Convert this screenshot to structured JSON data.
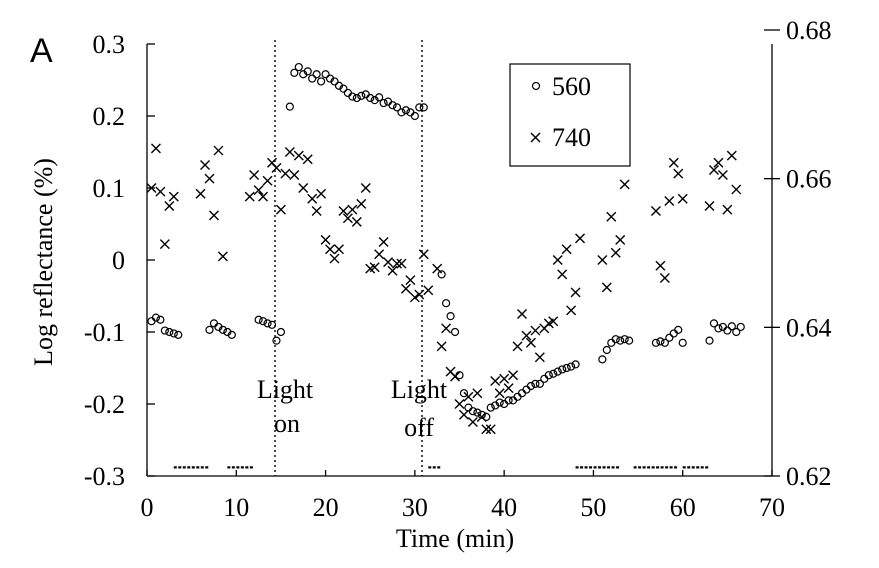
{
  "chart_data": {
    "type": "scatter",
    "panel_label": "A",
    "xlabel": "Time (min)",
    "ylabel": "Log reflectance (%)",
    "xlim": [
      0,
      70
    ],
    "ylim": [
      -0.3,
      0.3
    ],
    "x_ticks": [
      "0",
      "10",
      "20",
      "30",
      "40",
      "50",
      "60",
      "70"
    ],
    "y_ticks": [
      "-0.3",
      "-0.2",
      "-0.1",
      "0",
      "0.1",
      "0.2",
      "0.3"
    ],
    "y2lim": [
      0.62,
      0.68
    ],
    "y2_ticks": [
      "0.62",
      "0.64",
      "0.66",
      "0.68"
    ],
    "series": [
      {
        "name": "560",
        "marker": "circle",
        "points": [
          [
            0.5,
            -0.085
          ],
          [
            1,
            -0.08
          ],
          [
            1.5,
            -0.083
          ],
          [
            2,
            -0.098
          ],
          [
            2.5,
            -0.1
          ],
          [
            3,
            -0.102
          ],
          [
            3.5,
            -0.104
          ],
          [
            7,
            -0.097
          ],
          [
            7.5,
            -0.088
          ],
          [
            8,
            -0.093
          ],
          [
            8.5,
            -0.097
          ],
          [
            9,
            -0.1
          ],
          [
            9.5,
            -0.104
          ],
          [
            12.5,
            -0.083
          ],
          [
            13,
            -0.085
          ],
          [
            13.5,
            -0.088
          ],
          [
            14,
            -0.09
          ],
          [
            14.5,
            -0.112
          ],
          [
            15,
            -0.1
          ],
          [
            16,
            0.213
          ],
          [
            16.5,
            0.26
          ],
          [
            17,
            0.268
          ],
          [
            17.5,
            0.258
          ],
          [
            18,
            0.262
          ],
          [
            18.5,
            0.252
          ],
          [
            19,
            0.258
          ],
          [
            19.5,
            0.248
          ],
          [
            20,
            0.258
          ],
          [
            20.5,
            0.252
          ],
          [
            21,
            0.248
          ],
          [
            21.5,
            0.242
          ],
          [
            22,
            0.238
          ],
          [
            22.5,
            0.232
          ],
          [
            23,
            0.227
          ],
          [
            23.5,
            0.225
          ],
          [
            24,
            0.228
          ],
          [
            24.5,
            0.23
          ],
          [
            25,
            0.225
          ],
          [
            25.5,
            0.222
          ],
          [
            26,
            0.226
          ],
          [
            26.5,
            0.218
          ],
          [
            27,
            0.22
          ],
          [
            27.5,
            0.215
          ],
          [
            28,
            0.212
          ],
          [
            28.5,
            0.205
          ],
          [
            29,
            0.208
          ],
          [
            29.5,
            0.205
          ],
          [
            30,
            0.2
          ],
          [
            30.5,
            0.212
          ],
          [
            31,
            0.212
          ],
          [
            33,
            -0.02
          ],
          [
            33.5,
            -0.06
          ],
          [
            34,
            -0.078
          ],
          [
            34.5,
            -0.1
          ],
          [
            35,
            -0.16
          ],
          [
            35.5,
            -0.185
          ],
          [
            36,
            -0.205
          ],
          [
            36.5,
            -0.21
          ],
          [
            37,
            -0.212
          ],
          [
            37.5,
            -0.215
          ],
          [
            38,
            -0.218
          ],
          [
            38.5,
            -0.205
          ],
          [
            39,
            -0.202
          ],
          [
            39.5,
            -0.198
          ],
          [
            40,
            -0.2
          ],
          [
            40.5,
            -0.195
          ],
          [
            41,
            -0.195
          ],
          [
            41.5,
            -0.19
          ],
          [
            42,
            -0.185
          ],
          [
            42.5,
            -0.18
          ],
          [
            43,
            -0.175
          ],
          [
            43.5,
            -0.172
          ],
          [
            44,
            -0.172
          ],
          [
            44.5,
            -0.165
          ],
          [
            45,
            -0.16
          ],
          [
            45.5,
            -0.158
          ],
          [
            46,
            -0.155
          ],
          [
            46.5,
            -0.152
          ],
          [
            47,
            -0.15
          ],
          [
            47.5,
            -0.148
          ],
          [
            48,
            -0.145
          ],
          [
            51,
            -0.138
          ],
          [
            51.5,
            -0.125
          ],
          [
            52,
            -0.115
          ],
          [
            52.5,
            -0.11
          ],
          [
            53,
            -0.112
          ],
          [
            53.5,
            -0.11
          ],
          [
            54,
            -0.112
          ],
          [
            57,
            -0.115
          ],
          [
            57.5,
            -0.113
          ],
          [
            58,
            -0.115
          ],
          [
            58.5,
            -0.108
          ],
          [
            59,
            -0.102
          ],
          [
            59.5,
            -0.097
          ],
          [
            60,
            -0.115
          ],
          [
            63,
            -0.112
          ],
          [
            63.5,
            -0.088
          ],
          [
            64,
            -0.095
          ],
          [
            64.5,
            -0.093
          ],
          [
            65,
            -0.098
          ],
          [
            65.5,
            -0.092
          ],
          [
            66,
            -0.1
          ],
          [
            66.5,
            -0.093
          ]
        ]
      },
      {
        "name": "740",
        "marker": "x",
        "points": [
          [
            0.5,
            0.1
          ],
          [
            1,
            0.155
          ],
          [
            1.5,
            0.095
          ],
          [
            2,
            0.022
          ],
          [
            2.5,
            0.075
          ],
          [
            3,
            0.088
          ],
          [
            6,
            0.092
          ],
          [
            6.5,
            0.132
          ],
          [
            7,
            0.113
          ],
          [
            7.5,
            0.062
          ],
          [
            8,
            0.152
          ],
          [
            8.5,
            0.005
          ],
          [
            11.5,
            0.088
          ],
          [
            12,
            0.118
          ],
          [
            12.5,
            0.097
          ],
          [
            13,
            0.088
          ],
          [
            13.5,
            0.11
          ],
          [
            14,
            0.135
          ],
          [
            14.5,
            0.128
          ],
          [
            15,
            0.07
          ],
          [
            15.5,
            0.12
          ],
          [
            16,
            0.15
          ],
          [
            16.5,
            0.118
          ],
          [
            17,
            0.145
          ],
          [
            17.5,
            0.1
          ],
          [
            18,
            0.14
          ],
          [
            18.5,
            0.085
          ],
          [
            19,
            0.068
          ],
          [
            19.5,
            0.092
          ],
          [
            20,
            0.028
          ],
          [
            20.5,
            0.015
          ],
          [
            21,
            0.002
          ],
          [
            21.5,
            0.015
          ],
          [
            22,
            0.068
          ],
          [
            22.5,
            0.058
          ],
          [
            23,
            0.07
          ],
          [
            23.5,
            0.053
          ],
          [
            24,
            0.078
          ],
          [
            24.5,
            0.1
          ],
          [
            25,
            -0.012
          ],
          [
            25.5,
            -0.01
          ],
          [
            26,
            0.008
          ],
          [
            26.5,
            0.025
          ],
          [
            27,
            -0.003
          ],
          [
            27.5,
            -0.015
          ],
          [
            28,
            -0.005
          ],
          [
            28.5,
            -0.005
          ],
          [
            29,
            -0.04
          ],
          [
            29.5,
            -0.028
          ],
          [
            30,
            -0.052
          ],
          [
            30.5,
            -0.048
          ],
          [
            31,
            0.008
          ],
          [
            31.5,
            -0.042
          ],
          [
            32.5,
            -0.012
          ],
          [
            33,
            -0.12
          ],
          [
            33.5,
            -0.095
          ],
          [
            34,
            -0.155
          ],
          [
            34.5,
            -0.162
          ],
          [
            35,
            -0.2
          ],
          [
            35.5,
            -0.215
          ],
          [
            36,
            -0.19
          ],
          [
            36.5,
            -0.225
          ],
          [
            37,
            -0.185
          ],
          [
            37.5,
            -0.218
          ],
          [
            38,
            -0.235
          ],
          [
            38.5,
            -0.235
          ],
          [
            39,
            -0.168
          ],
          [
            39.5,
            -0.185
          ],
          [
            40,
            -0.165
          ],
          [
            40.5,
            -0.178
          ],
          [
            41,
            -0.16
          ],
          [
            41.5,
            -0.12
          ],
          [
            42,
            -0.075
          ],
          [
            42.5,
            -0.105
          ],
          [
            43,
            -0.115
          ],
          [
            43.5,
            -0.098
          ],
          [
            44,
            -0.135
          ],
          [
            44.5,
            -0.095
          ],
          [
            45,
            -0.088
          ],
          [
            45.5,
            -0.085
          ],
          [
            46,
            0.0
          ],
          [
            46.5,
            -0.02
          ],
          [
            47,
            0.015
          ],
          [
            47.5,
            -0.07
          ],
          [
            48,
            -0.045
          ],
          [
            48.5,
            0.03
          ],
          [
            51,
            0.0
          ],
          [
            51.5,
            -0.038
          ],
          [
            52,
            0.06
          ],
          [
            52.5,
            0.01
          ],
          [
            53,
            0.028
          ],
          [
            53.5,
            0.105
          ],
          [
            57,
            0.068
          ],
          [
            57.5,
            -0.008
          ],
          [
            58,
            -0.025
          ],
          [
            58.5,
            0.082
          ],
          [
            59,
            0.135
          ],
          [
            59.5,
            0.12
          ],
          [
            60,
            0.085
          ],
          [
            63,
            0.075
          ],
          [
            63.5,
            0.125
          ],
          [
            64,
            0.135
          ],
          [
            64.5,
            0.118
          ],
          [
            65,
            0.07
          ],
          [
            65.5,
            0.145
          ],
          [
            66,
            0.098
          ]
        ]
      }
    ],
    "legend": {
      "position": "top-right",
      "entries": [
        "560",
        "740"
      ]
    },
    "annotations": {
      "light_on": {
        "line1": "Light",
        "line2": "on",
        "x": 15.4
      },
      "light_off": {
        "line1": "Light",
        "line2": "off",
        "x": 31
      }
    },
    "measurement_periods": [
      [
        3,
        7
      ],
      [
        9,
        12
      ],
      [
        31.5,
        33
      ],
      [
        48,
        53
      ],
      [
        54.5,
        59.5
      ],
      [
        60,
        63
      ]
    ],
    "grid": false
  }
}
